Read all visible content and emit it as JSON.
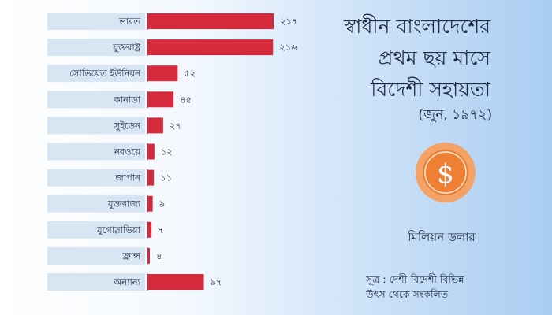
{
  "title_lines": [
    "স্বাধীন বাংলাদেশের",
    "প্রথম ছয় মাসে",
    "বিদেশী সহায়তা"
  ],
  "date": "(জুন, ১৯৭২)",
  "unit": "মিলিয়ন ডলার",
  "source_lines": [
    "সূত্র : দেশী-বিদেশী বিভিন্ন",
    "উৎস থেকে সংকলিত"
  ],
  "icon": "dollar-coin-icon",
  "colors": {
    "bar": "#d42a3c",
    "label_box": "#d8e6f4",
    "coin_outer": "#f4a266",
    "coin_inner": "#ef7f33"
  },
  "chart_data": {
    "type": "bar",
    "orientation": "horizontal",
    "categories": [
      "ভারত",
      "যুক্তরাষ্ট্র",
      "সোভিয়েত ইউনিয়ন",
      "কানাডা",
      "সুইডেন",
      "নরওয়ে",
      "জাপান",
      "যুক্তরাজ্য",
      "যুগোস্লাভিয়া",
      "ফ্রান্স",
      "অন্যান্য"
    ],
    "values": [
      217,
      216,
      52,
      45,
      27,
      12,
      11,
      9,
      7,
      4,
      97
    ],
    "value_labels": [
      "২১৭",
      "২১৬",
      "৫২",
      "৪৫",
      "২৭",
      "১২",
      "১১",
      "৯",
      "৭",
      "৪",
      "৯৭"
    ],
    "unit": "মিলিয়ন ডলার"
  }
}
